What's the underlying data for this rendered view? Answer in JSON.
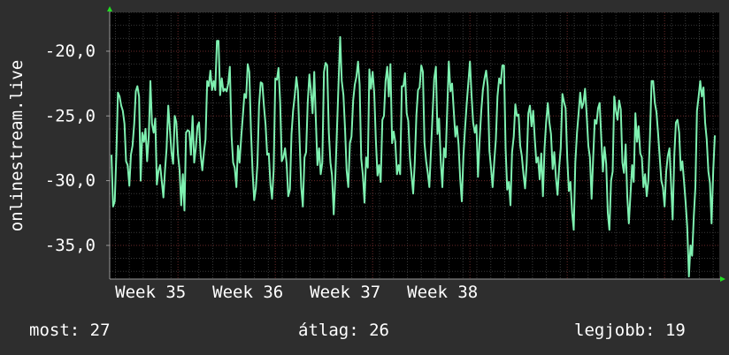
{
  "chart_data": {
    "type": "line",
    "ylabel": "onlinestream.live",
    "y_ticks": [
      -20,
      -25,
      -30,
      -35
    ],
    "y_tick_labels": [
      "-20,0",
      "-25,0",
      "-30,0",
      "-35,0"
    ],
    "ylim": [
      -37.6,
      -17.0
    ],
    "x_ticks": [
      {
        "label": "Week 35",
        "index": 11
      },
      {
        "label": "Week 36",
        "index": 71
      },
      {
        "label": "Week 37",
        "index": 131
      },
      {
        "label": "Week 38",
        "index": 191
      }
    ],
    "series": [
      {
        "color": "#7ef0b0",
        "values": [
          -28.0,
          -32.0,
          -31.6,
          -28.0,
          -23.2,
          -23.5,
          -24.2,
          -24.6,
          -25.6,
          -28.5,
          -28.8,
          -30.4,
          -28.0,
          -27.3,
          -25.6,
          -23.1,
          -22.7,
          -23.5,
          -30.0,
          -26.3,
          -27.0,
          -26.0,
          -28.5,
          -26.5,
          -22.3,
          -25.6,
          -26.3,
          -25.2,
          -30.3,
          -29.2,
          -28.8,
          -30.0,
          -31.3,
          -29.2,
          -27.5,
          -24.2,
          -26.0,
          -27.8,
          -28.7,
          -25.0,
          -25.5,
          -28.0,
          -29.2,
          -31.9,
          -29.5,
          -32.3,
          -26.3,
          -26.1,
          -26.2,
          -28.0,
          -25.0,
          -28.6,
          -27.5,
          -25.8,
          -25.5,
          -28.0,
          -29.2,
          -27.8,
          -26.8,
          -22.3,
          -22.7,
          -21.5,
          -23.0,
          -22.3,
          -23.0,
          -19.2,
          -19.2,
          -23.4,
          -22.1,
          -23.1,
          -22.9,
          -23.1,
          -22.5,
          -21.2,
          -26.5,
          -28.6,
          -29.0,
          -30.5,
          -27.3,
          -28.6,
          -26.6,
          -25.0,
          -23.3,
          -23.6,
          -21.0,
          -21.6,
          -26.2,
          -29.3,
          -31.5,
          -30.6,
          -28.7,
          -24.2,
          -22.4,
          -22.5,
          -24.2,
          -25.7,
          -28.0,
          -27.9,
          -30.3,
          -31.4,
          -29.2,
          -22.1,
          -22.2,
          -21.3,
          -24.0,
          -28.5,
          -28.2,
          -27.5,
          -28.7,
          -31.2,
          -30.7,
          -26.4,
          -24.6,
          -23.4,
          -22.0,
          -23.1,
          -27.0,
          -30.5,
          -32.0,
          -28.2,
          -27.8,
          -24.0,
          -21.8,
          -23.1,
          -24.8,
          -21.6,
          -25.3,
          -28.8,
          -27.5,
          -29.5,
          -28.6,
          -21.6,
          -20.9,
          -21.1,
          -26.3,
          -28.6,
          -29.6,
          -32.6,
          -29.8,
          -26.2,
          -22.4,
          -18.9,
          -22.3,
          -23.4,
          -26.0,
          -29.2,
          -30.5,
          -27.1,
          -26.6,
          -23.8,
          -22.6,
          -22.0,
          -20.8,
          -22.6,
          -28.3,
          -29.6,
          -31.7,
          -28.2,
          -29.0,
          -21.4,
          -22.9,
          -21.6,
          -23.2,
          -26.8,
          -29.6,
          -28.8,
          -30.1,
          -25.3,
          -25.0,
          -22.3,
          -21.2,
          -23.5,
          -21.0,
          -27.1,
          -26.2,
          -27.0,
          -29.5,
          -28.8,
          -29.5,
          -22.7,
          -22.7,
          -21.7,
          -24.8,
          -25.4,
          -28.2,
          -29.6,
          -31.0,
          -28.6,
          -24.9,
          -23.0,
          -22.8,
          -21.1,
          -21.6,
          -27.1,
          -28.5,
          -29.4,
          -30.5,
          -27.6,
          -24.8,
          -22.1,
          -21.2,
          -26.4,
          -25.2,
          -28.5,
          -30.5,
          -27.5,
          -28.2,
          -24.5,
          -20.8,
          -23.1,
          -22.5,
          -24.5,
          -26.6,
          -25.8,
          -27.2,
          -29.9,
          -31.6,
          -28.1,
          -25.9,
          -24.1,
          -22.5,
          -20.8,
          -23.4,
          -25.5,
          -26.3,
          -25.7,
          -29.7,
          -26.8,
          -24.6,
          -23.0,
          -22.1,
          -21.5,
          -22.7,
          -27.7,
          -29.0,
          -30.5,
          -28.5,
          -26.8,
          -23.5,
          -22.1,
          -22.5,
          -21.1,
          -21.1,
          -27.5,
          -30.7,
          -30.1,
          -31.9,
          -27.8,
          -26.6,
          -24.1,
          -25.0,
          -24.9,
          -27.3,
          -28.1,
          -29.5,
          -30.6,
          -28.7,
          -24.8,
          -24.2,
          -25.8,
          -24.6,
          -26.8,
          -28.6,
          -28.2,
          -29.9,
          -27.9,
          -31.2,
          -27.5,
          -25.5,
          -24.0,
          -25.5,
          -26.4,
          -29.1,
          -27.8,
          -29.7,
          -31.1,
          -29.0,
          -27.5,
          -23.3,
          -23.9,
          -24.4,
          -28.3,
          -30.8,
          -30.1,
          -32.5,
          -33.8,
          -28.6,
          -26.3,
          -24.8,
          -23.2,
          -24.4,
          -24.0,
          -22.9,
          -25.0,
          -27.3,
          -28.2,
          -31.4,
          -28.2,
          -25.3,
          -25.6,
          -24.4,
          -24.0,
          -26.8,
          -29.3,
          -27.4,
          -28.7,
          -32.5,
          -33.8,
          -30.0,
          -29.3,
          -23.5,
          -24.6,
          -25.3,
          -23.8,
          -24.5,
          -28.6,
          -29.4,
          -27.2,
          -31.2,
          -33.3,
          -31.0,
          -28.8,
          -30.1,
          -24.8,
          -27.0,
          -25.8,
          -27.9,
          -28.2,
          -30.5,
          -29.5,
          -31.2,
          -30.0,
          -26.5,
          -22.3,
          -22.3,
          -24.0,
          -24.7,
          -26.3,
          -28.2,
          -30.0,
          -30.5,
          -32.0,
          -29.3,
          -28.1,
          -27.5,
          -30.2,
          -33.0,
          -28.0,
          -25.5,
          -25.3,
          -26.3,
          -29.2,
          -28.5,
          -30.1,
          -31.7,
          -33.6,
          -37.4,
          -35.0,
          -35.8,
          -32.8,
          -30.5,
          -24.6,
          -23.5,
          -22.3,
          -23.5,
          -22.8,
          -25.5,
          -26.8,
          -29.3,
          -30.2,
          -33.3,
          -29.2,
          -26.5
        ]
      }
    ]
  },
  "stats": {
    "now": {
      "label": "most:",
      "value": "27"
    },
    "avg": {
      "label": "átlag:",
      "value": "26"
    },
    "best": {
      "label": "legjobb:",
      "value": "19"
    }
  }
}
